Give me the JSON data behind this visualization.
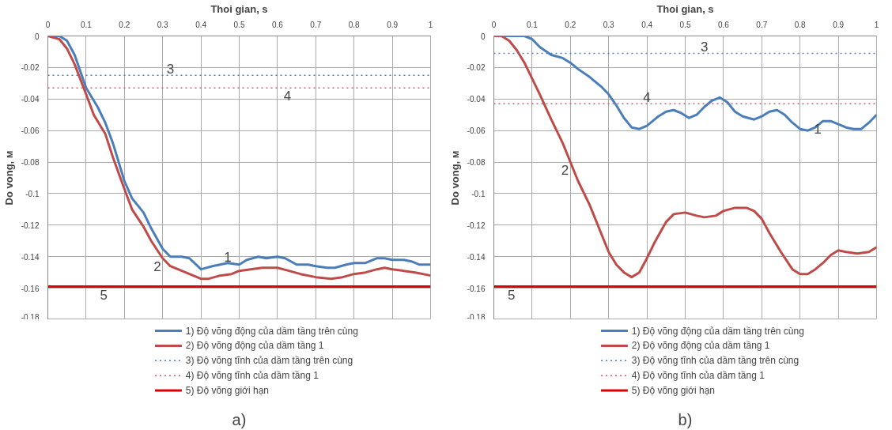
{
  "chart_data": [
    {
      "type": "line",
      "xlabel": "Thoi gian, s",
      "ylabel": "Do vong, м",
      "xlim": [
        0,
        1
      ],
      "ylim": [
        -0.18,
        0
      ],
      "xticks": [
        0,
        0.1,
        0.2,
        0.3,
        0.4,
        0.5,
        0.6,
        0.7,
        0.8,
        0.9,
        1
      ],
      "yticks": [
        0,
        -0.02,
        -0.04,
        -0.06,
        -0.08,
        -0.1,
        -0.12,
        -0.14,
        -0.16,
        -0.18
      ],
      "grid": true,
      "legend": "bottom",
      "marker": "none",
      "series": [
        {
          "name": "1) Độ võng động của dầm tầng trên cùng",
          "color": "#4a7ebb",
          "line_style": "solid",
          "x": [
            0,
            0.03,
            0.05,
            0.07,
            0.1,
            0.13,
            0.15,
            0.17,
            0.2,
            0.22,
            0.25,
            0.27,
            0.3,
            0.32,
            0.35,
            0.37,
            0.4,
            0.43,
            0.45,
            0.47,
            0.5,
            0.52,
            0.55,
            0.57,
            0.6,
            0.62,
            0.65,
            0.68,
            0.7,
            0.73,
            0.75,
            0.78,
            0.8,
            0.83,
            0.86,
            0.88,
            0.9,
            0.93,
            0.95,
            0.97,
            1
          ],
          "values": [
            0,
            0,
            -0.003,
            -0.012,
            -0.033,
            -0.045,
            -0.055,
            -0.068,
            -0.092,
            -0.103,
            -0.112,
            -0.122,
            -0.135,
            -0.14,
            -0.14,
            -0.141,
            -0.148,
            -0.146,
            -0.145,
            -0.144,
            -0.145,
            -0.142,
            -0.14,
            -0.141,
            -0.14,
            -0.141,
            -0.145,
            -0.145,
            -0.146,
            -0.147,
            -0.147,
            -0.145,
            -0.144,
            -0.144,
            -0.141,
            -0.141,
            -0.142,
            -0.142,
            -0.143,
            -0.145,
            -0.145
          ]
        },
        {
          "name": "2) Độ võng động của dầm tầng 1",
          "color": "#be4b48",
          "line_style": "solid",
          "x": [
            0,
            0.03,
            0.05,
            0.07,
            0.1,
            0.12,
            0.15,
            0.17,
            0.2,
            0.22,
            0.25,
            0.27,
            0.3,
            0.32,
            0.35,
            0.38,
            0.4,
            0.42,
            0.45,
            0.48,
            0.5,
            0.53,
            0.56,
            0.58,
            0.6,
            0.63,
            0.66,
            0.7,
            0.74,
            0.77,
            0.8,
            0.83,
            0.86,
            0.88,
            0.9,
            0.93,
            0.96,
            1
          ],
          "values": [
            0,
            -0.002,
            -0.008,
            -0.018,
            -0.037,
            -0.05,
            -0.062,
            -0.077,
            -0.097,
            -0.11,
            -0.121,
            -0.13,
            -0.141,
            -0.146,
            -0.149,
            -0.152,
            -0.154,
            -0.154,
            -0.152,
            -0.151,
            -0.149,
            -0.148,
            -0.147,
            -0.147,
            -0.147,
            -0.149,
            -0.151,
            -0.153,
            -0.154,
            -0.153,
            -0.151,
            -0.15,
            -0.148,
            -0.147,
            -0.148,
            -0.149,
            -0.15,
            -0.152
          ]
        },
        {
          "name": "3) Độ võng tĩnh của dầm tầng trên cùng",
          "color": "#4a7ebb",
          "line_style": "dotted",
          "x": [
            0,
            1
          ],
          "values": [
            -0.025,
            -0.025
          ]
        },
        {
          "name": "4) Độ võng tĩnh của dầm tầng 1",
          "color": "#e0506a",
          "line_style": "dotted",
          "x": [
            0,
            1
          ],
          "values": [
            -0.033,
            -0.033
          ]
        },
        {
          "name": "5) Độ võng giới hạn",
          "color": "#e00000",
          "line_style": "solid",
          "x": [
            0,
            1
          ],
          "values": [
            -0.159,
            -0.159
          ]
        }
      ],
      "annotations": [
        {
          "text": "1",
          "x": 0.47,
          "y": -0.144
        },
        {
          "text": "2",
          "x": 0.3,
          "y": -0.141
        },
        {
          "text": "3",
          "x": 0.32,
          "y": -0.025
        },
        {
          "text": "4",
          "x": 0.64,
          "y": -0.033
        },
        {
          "text": "5",
          "x": 0.16,
          "y": -0.159
        },
        "a)"
      ]
    },
    {
      "type": "line",
      "xlabel": "Thoi gian, s",
      "ylabel": "Do vong, м",
      "xlim": [
        0,
        1
      ],
      "ylim": [
        -0.18,
        0
      ],
      "xticks": [
        0,
        0.1,
        0.2,
        0.3,
        0.4,
        0.5,
        0.6,
        0.7,
        0.8,
        0.9,
        1
      ],
      "yticks": [
        0,
        -0.02,
        -0.04,
        -0.06,
        -0.08,
        -0.1,
        -0.12,
        -0.14,
        -0.16,
        -0.18
      ],
      "grid": true,
      "legend": "bottom",
      "marker": "none",
      "series": [
        {
          "name": "1) Độ võng động của dầm tầng trên cùng",
          "color": "#4a7ebb",
          "line_style": "solid",
          "x": [
            0,
            0.05,
            0.08,
            0.1,
            0.12,
            0.15,
            0.18,
            0.2,
            0.22,
            0.25,
            0.28,
            0.3,
            0.32,
            0.34,
            0.36,
            0.38,
            0.4,
            0.43,
            0.45,
            0.47,
            0.49,
            0.51,
            0.53,
            0.55,
            0.57,
            0.59,
            0.61,
            0.63,
            0.65,
            0.68,
            0.7,
            0.72,
            0.74,
            0.76,
            0.78,
            0.8,
            0.82,
            0.84,
            0.86,
            0.88,
            0.9,
            0.92,
            0.94,
            0.96,
            0.98,
            1
          ],
          "values": [
            0,
            0,
            0,
            -0.002,
            -0.007,
            -0.012,
            -0.014,
            -0.017,
            -0.021,
            -0.026,
            -0.032,
            -0.037,
            -0.044,
            -0.052,
            -0.058,
            -0.059,
            -0.057,
            -0.051,
            -0.048,
            -0.047,
            -0.049,
            -0.052,
            -0.05,
            -0.045,
            -0.041,
            -0.039,
            -0.042,
            -0.048,
            -0.051,
            -0.053,
            -0.051,
            -0.048,
            -0.047,
            -0.05,
            -0.055,
            -0.059,
            -0.06,
            -0.058,
            -0.054,
            -0.054,
            -0.056,
            -0.058,
            -0.059,
            -0.059,
            -0.055,
            -0.05
          ]
        },
        {
          "name": "2) Độ võng động của dầm tầng 1",
          "color": "#be4b48",
          "line_style": "solid",
          "x": [
            0,
            0.02,
            0.04,
            0.06,
            0.08,
            0.1,
            0.12,
            0.15,
            0.18,
            0.2,
            0.22,
            0.25,
            0.28,
            0.3,
            0.32,
            0.34,
            0.36,
            0.38,
            0.4,
            0.42,
            0.45,
            0.47,
            0.5,
            0.53,
            0.55,
            0.58,
            0.6,
            0.63,
            0.66,
            0.68,
            0.7,
            0.72,
            0.75,
            0.78,
            0.8,
            0.82,
            0.84,
            0.86,
            0.88,
            0.9,
            0.92,
            0.95,
            0.98,
            1
          ],
          "values": [
            0,
            0,
            -0.003,
            -0.009,
            -0.017,
            -0.027,
            -0.037,
            -0.053,
            -0.068,
            -0.08,
            -0.092,
            -0.107,
            -0.125,
            -0.137,
            -0.145,
            -0.15,
            -0.153,
            -0.15,
            -0.141,
            -0.131,
            -0.118,
            -0.113,
            -0.112,
            -0.114,
            -0.115,
            -0.114,
            -0.111,
            -0.109,
            -0.109,
            -0.111,
            -0.116,
            -0.125,
            -0.137,
            -0.148,
            -0.151,
            -0.151,
            -0.148,
            -0.144,
            -0.139,
            -0.136,
            -0.137,
            -0.138,
            -0.137,
            -0.134
          ]
        },
        {
          "name": "3) Độ võng tĩnh của dầm tầng trên cùng",
          "color": "#4a7ebb",
          "line_style": "dotted",
          "x": [
            0,
            1
          ],
          "values": [
            -0.011,
            -0.011
          ]
        },
        {
          "name": "4) Độ võng tĩnh của dầm tầng 1",
          "color": "#e0506a",
          "line_style": "dotted",
          "x": [
            0,
            1
          ],
          "values": [
            -0.043,
            -0.043
          ]
        },
        {
          "name": "5) Độ võng giới hạn",
          "color": "#e00000",
          "line_style": "solid",
          "x": [
            0,
            1
          ],
          "values": [
            -0.159,
            -0.159
          ]
        }
      ],
      "annotations": [
        {
          "text": "1",
          "x": 0.86,
          "y": -0.054
        },
        {
          "text": "2",
          "x": 0.2,
          "y": -0.08
        },
        {
          "text": "3",
          "x": 0.55,
          "y": -0.011
        },
        {
          "text": "4",
          "x": 0.4,
          "y": -0.043
        },
        {
          "text": "5",
          "x": 0.06,
          "y": -0.159
        },
        "b)"
      ]
    }
  ]
}
